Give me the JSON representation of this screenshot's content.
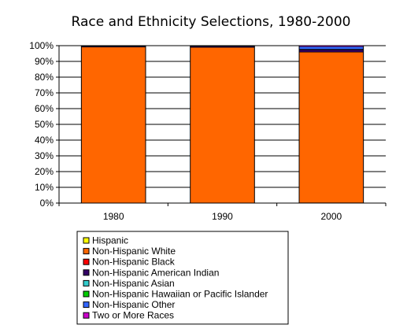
{
  "chart_data": {
    "type": "bar",
    "stacked": true,
    "percent_stacked": true,
    "title": "Race and Ethnicity Selections, 1980-2000",
    "xlabel": "",
    "ylabel": "",
    "categories": [
      "1980",
      "1990",
      "2000"
    ],
    "ylim": [
      0,
      100
    ],
    "yticks": [
      "0%",
      "10%",
      "20%",
      "30%",
      "40%",
      "50%",
      "60%",
      "70%",
      "80%",
      "90%",
      "100%"
    ],
    "grid": true,
    "legend_position": "bottom",
    "series": [
      {
        "name": "Hispanic",
        "color": "#FFFF00",
        "values": [
          0.2,
          0.2,
          0.3
        ]
      },
      {
        "name": "Non-Hispanic White",
        "color": "#FF6600",
        "values": [
          99.0,
          98.8,
          95.7
        ]
      },
      {
        "name": "Non-Hispanic Black",
        "color": "#FF0000",
        "values": [
          0.1,
          0.1,
          0.1
        ]
      },
      {
        "name": "Non-Hispanic American Indian",
        "color": "#330066",
        "values": [
          0.5,
          0.6,
          1.4
        ]
      },
      {
        "name": "Non-Hispanic Asian",
        "color": "#33CCCC",
        "values": [
          0.1,
          0.1,
          0.3
        ]
      },
      {
        "name": "Non-Hispanic Hawaiian or Pacific Islander",
        "color": "#00CC00",
        "values": [
          0,
          0,
          0.1
        ]
      },
      {
        "name": "Non-Hispanic Other",
        "color": "#3366FF",
        "values": [
          0.1,
          0.2,
          1.6
        ]
      },
      {
        "name": "Two or More Races",
        "color": "#CC00CC",
        "values": [
          0,
          0,
          0.5
        ]
      }
    ]
  }
}
